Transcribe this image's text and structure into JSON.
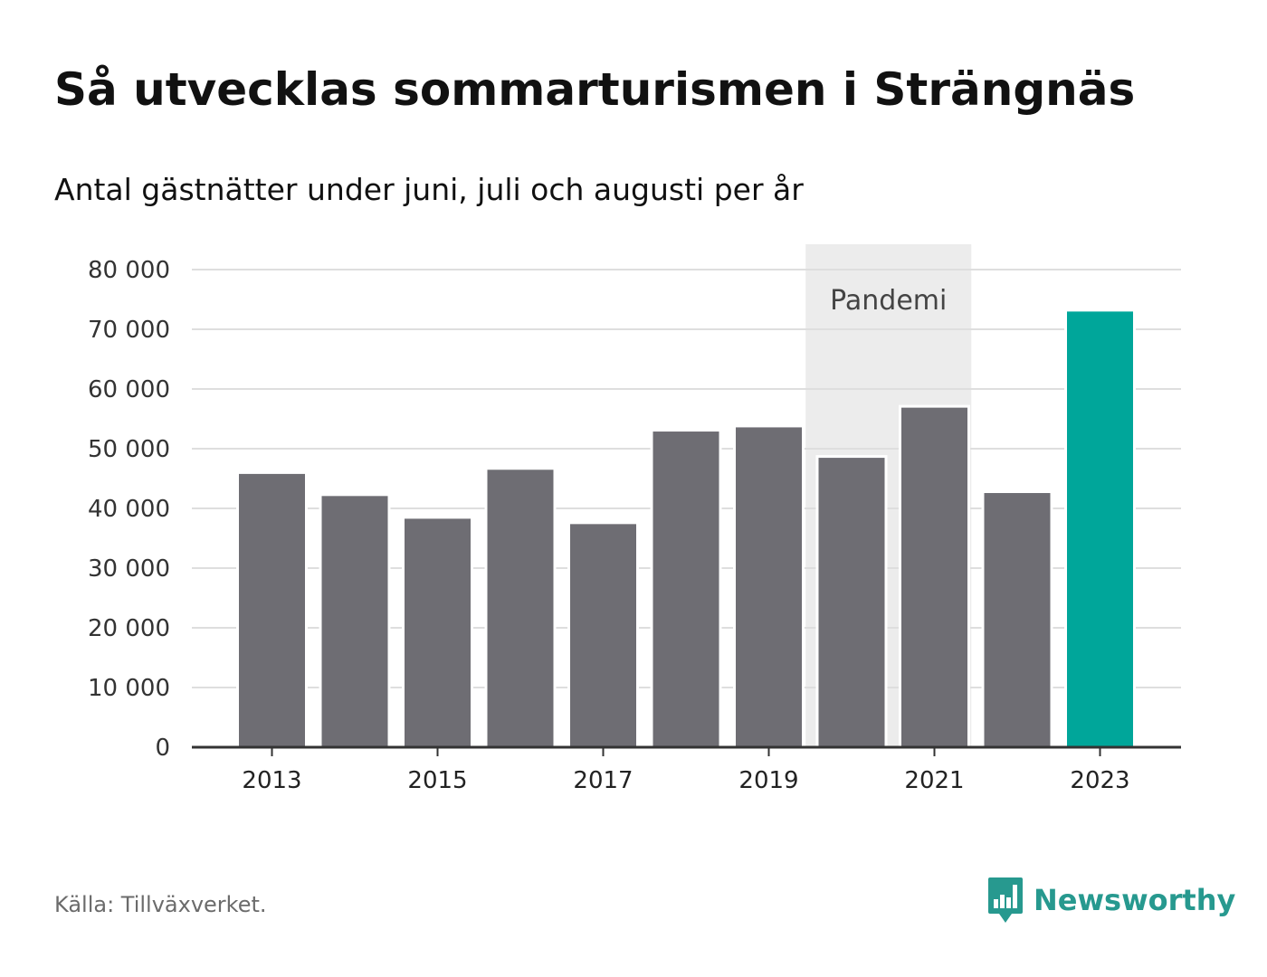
{
  "title": "Så utvecklas sommarturismen i Strängnäs",
  "subtitle": "Antal gästnätter under juni, juli och augusti per år",
  "source": "Källa: Tillväxverket.",
  "brand": "Newsworthy",
  "colors": {
    "bar": "#6e6d73",
    "highlight": "#00a69a",
    "band": "#ececec",
    "grid": "#dedede",
    "axis": "#333333",
    "brand": "#27998f"
  },
  "chart_data": {
    "type": "bar",
    "categories": [
      "2013",
      "2014",
      "2015",
      "2016",
      "2017",
      "2018",
      "2019",
      "2020",
      "2021",
      "2022",
      "2023"
    ],
    "values": [
      46000,
      42300,
      38500,
      46700,
      37600,
      53100,
      53800,
      48700,
      57100,
      42800,
      73200
    ],
    "highlight_category": "2023",
    "x_tick_labels": [
      "2013",
      "2015",
      "2017",
      "2019",
      "2021",
      "2023"
    ],
    "y_ticks": [
      {
        "value": 0,
        "label": "0"
      },
      {
        "value": 10000,
        "label": "10 000"
      },
      {
        "value": 20000,
        "label": "20 000"
      },
      {
        "value": 30000,
        "label": "30 000"
      },
      {
        "value": 40000,
        "label": "40 000"
      },
      {
        "value": 50000,
        "label": "50 000"
      },
      {
        "value": 60000,
        "label": "60 000"
      },
      {
        "value": 70000,
        "label": "70 000"
      },
      {
        "value": 80000,
        "label": "80 000"
      }
    ],
    "ylim": [
      0,
      80000
    ],
    "grid": true,
    "annotation": {
      "label": "Pandemi",
      "from": "2020",
      "to": "2021"
    }
  }
}
